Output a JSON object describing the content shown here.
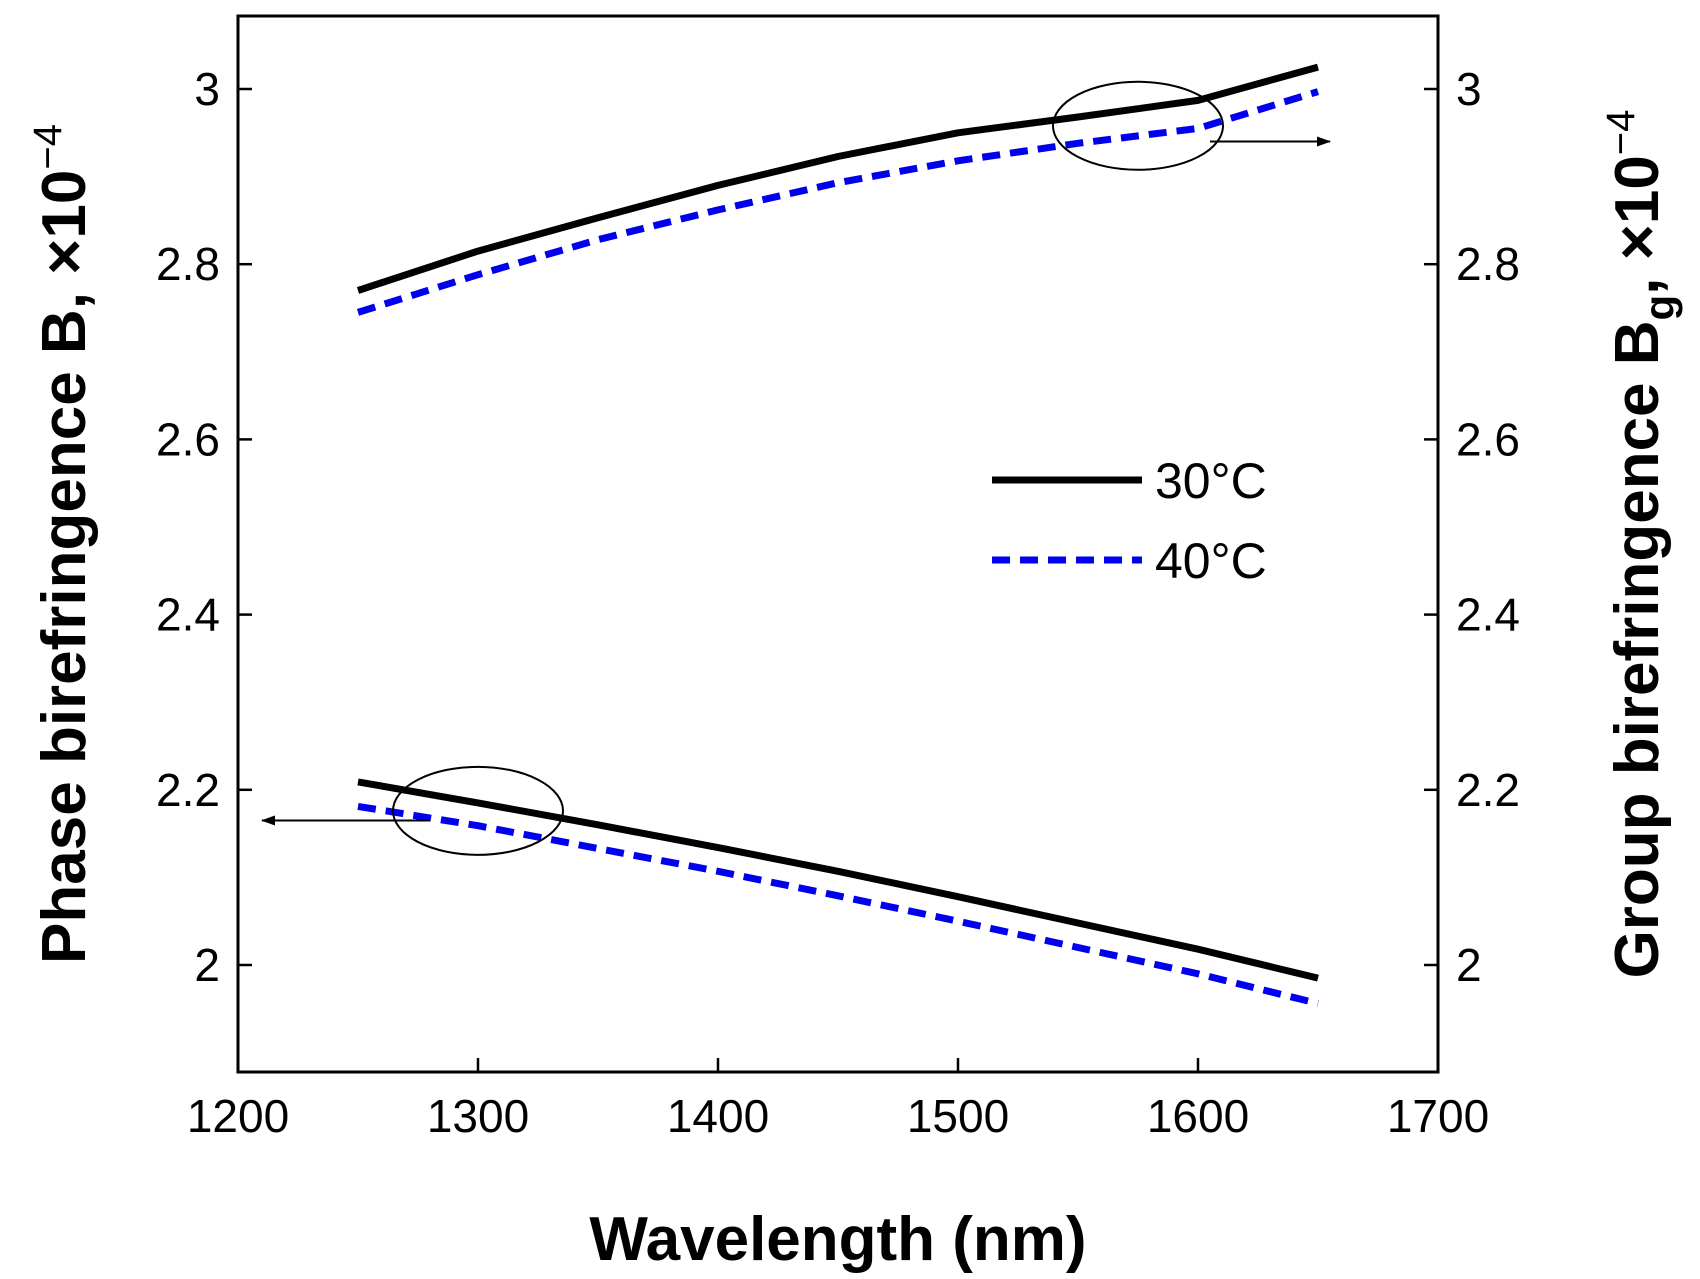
{
  "chart_data": {
    "type": "line",
    "title": "",
    "xlabel": "Wavelength (nm)",
    "ylabel_left": {
      "main": "Phase birefringence B, ×10",
      "exponent": "−4"
    },
    "ylabel_right": {
      "main": "Group birefringence B",
      "subscript": "g",
      "suffix": ", ×10",
      "exponent": "−4"
    },
    "xlim": [
      1200,
      1700
    ],
    "ylim": [
      1.9,
      3.1
    ],
    "x_ticks": [
      "1200",
      "1300",
      "1400",
      "1500",
      "1600",
      "1700"
    ],
    "y_ticks": [
      "2",
      "2.2",
      "2.4",
      "2.6",
      "2.8",
      "3"
    ],
    "legend": {
      "placement": "center-right",
      "entries": [
        "30°C",
        "40°C"
      ]
    },
    "series": [
      {
        "name": "30°C",
        "group": "phase",
        "color": "#000000",
        "style": "solid",
        "x": [
          1250,
          1300,
          1350,
          1400,
          1450,
          1500,
          1550,
          1600,
          1650
        ],
        "y": [
          2.209,
          2.185,
          2.16,
          2.134,
          2.107,
          2.078,
          2.048,
          2.018,
          1.985
        ]
      },
      {
        "name": "40°C",
        "group": "phase",
        "color": "#0000ee",
        "style": "dashed",
        "x": [
          1250,
          1300,
          1350,
          1400,
          1450,
          1500,
          1550,
          1600,
          1650
        ],
        "y": [
          2.181,
          2.159,
          2.133,
          2.107,
          2.079,
          2.05,
          2.02,
          1.99,
          1.956
        ]
      },
      {
        "name": "30°C",
        "group": "group",
        "color": "#000000",
        "style": "solid",
        "x": [
          1250,
          1300,
          1350,
          1400,
          1450,
          1500,
          1550,
          1600,
          1650
        ],
        "y": [
          2.77,
          2.815,
          2.853,
          2.89,
          2.923,
          2.95,
          2.968,
          2.987,
          3.025
        ]
      },
      {
        "name": "40°C",
        "group": "group",
        "color": "#0000ee",
        "style": "dashed",
        "x": [
          1250,
          1300,
          1350,
          1400,
          1450,
          1500,
          1550,
          1600,
          1650
        ],
        "y": [
          2.745,
          2.788,
          2.828,
          2.862,
          2.893,
          2.918,
          2.938,
          2.955,
          2.997
        ]
      }
    ],
    "annotations": [
      {
        "target": "phase",
        "ellipse_center": [
          1300,
          2.176
        ],
        "arrow_to": "left-axis",
        "arrow_from": [
          1280,
          2.165
        ],
        "arrow_tip": [
          1210,
          2.165
        ]
      },
      {
        "target": "group",
        "ellipse_center": [
          1575,
          2.958
        ],
        "arrow_to": "right-axis",
        "arrow_from": [
          1605,
          2.94
        ],
        "arrow_tip": [
          1655,
          2.94
        ]
      }
    ]
  }
}
